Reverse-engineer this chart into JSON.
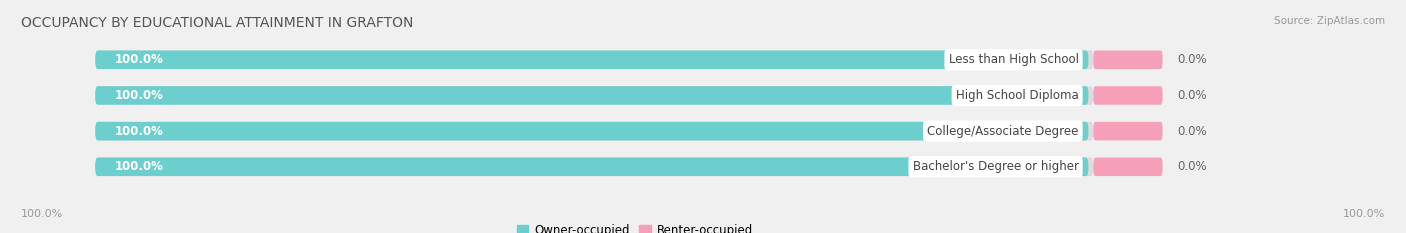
{
  "title": "OCCUPANCY BY EDUCATIONAL ATTAINMENT IN GRAFTON",
  "source": "Source: ZipAtlas.com",
  "categories": [
    "Less than High School",
    "High School Diploma",
    "College/Associate Degree",
    "Bachelor's Degree or higher"
  ],
  "owner_values": [
    100.0,
    100.0,
    100.0,
    100.0
  ],
  "renter_values": [
    0.0,
    0.0,
    0.0,
    0.0
  ],
  "owner_color": "#6dcece",
  "renter_color": "#f5a0b8",
  "bar_bg_color": "#e8e8e8",
  "background_color": "#f0f0f0",
  "title_fontsize": 10,
  "source_fontsize": 7.5,
  "label_fontsize": 8.5,
  "category_label_fontsize": 8.5,
  "value_label_fontsize": 8.5,
  "bar_label_color_owner": "#ffffff",
  "legend_owner": "Owner-occupied",
  "legend_renter": "Renter-occupied",
  "bottom_left_label": "100.0%",
  "bottom_right_label": "100.0%"
}
